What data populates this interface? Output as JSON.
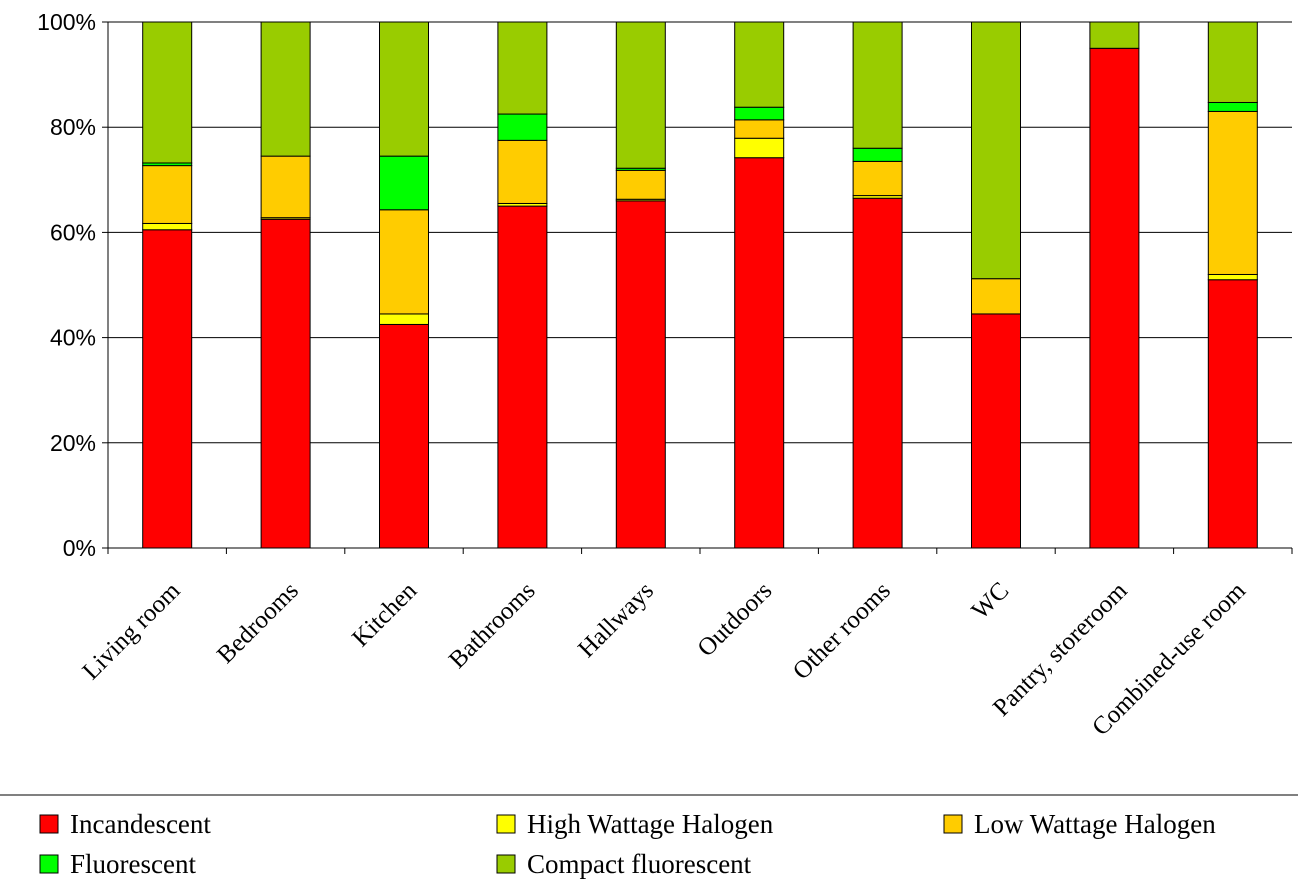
{
  "chart_data": {
    "type": "bar",
    "stacked": true,
    "normalized": true,
    "title": "",
    "xlabel": "",
    "ylabel": "",
    "ylim": [
      0,
      100
    ],
    "yticks": [
      "0%",
      "20%",
      "40%",
      "60%",
      "80%",
      "100%"
    ],
    "grid": true,
    "legend_position": "bottom",
    "categories": [
      "Living room",
      "Bedrooms",
      "Kitchen",
      "Bathrooms",
      "Hallways",
      "Outdoors",
      "Other rooms",
      "WC",
      "Pantry, storeroom",
      "Combined-use room"
    ],
    "series": [
      {
        "name": "Incandescent",
        "color": "#ff0000",
        "values": [
          60.5,
          62.5,
          42.5,
          65.0,
          66.0,
          74.2,
          66.5,
          44.5,
          95.0,
          51.0
        ]
      },
      {
        "name": "High Wattage Halogen",
        "color": "#ffff00",
        "values": [
          1.2,
          0.3,
          2.0,
          0.5,
          0.3,
          3.7,
          0.5,
          0.0,
          0.0,
          1.0
        ]
      },
      {
        "name": "Low Wattage Halogen",
        "color": "#ffcc00",
        "values": [
          11.0,
          11.7,
          19.8,
          12.0,
          5.5,
          3.5,
          6.5,
          6.7,
          0.0,
          31.0
        ]
      },
      {
        "name": "Fluorescent",
        "color": "#00ff00",
        "values": [
          0.5,
          0.0,
          10.2,
          5.0,
          0.4,
          2.4,
          2.5,
          0.0,
          0.0,
          1.7
        ]
      },
      {
        "name": "Compact fluorescent",
        "color": "#99cc00",
        "values": [
          26.8,
          25.5,
          25.5,
          17.5,
          27.8,
          16.2,
          24.0,
          48.8,
          5.0,
          15.3
        ]
      }
    ]
  }
}
